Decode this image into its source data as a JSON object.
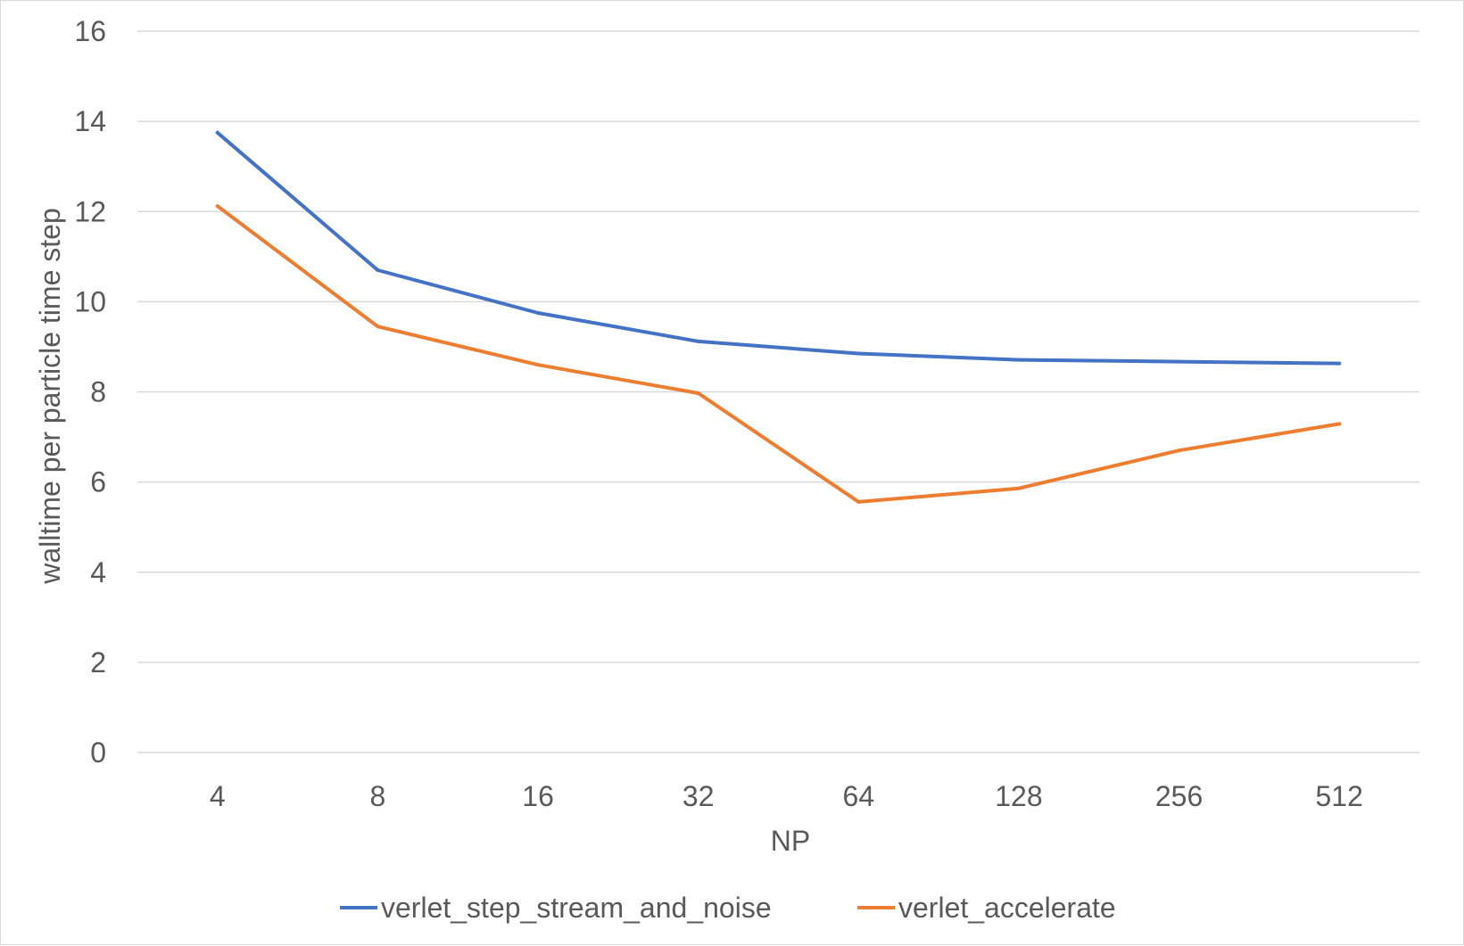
{
  "chart_data": {
    "type": "line",
    "title": "",
    "xlabel": "NP",
    "ylabel": "walltime per particle time step",
    "categories": [
      "4",
      "8",
      "16",
      "32",
      "64",
      "128",
      "256",
      "512"
    ],
    "ylim": [
      0,
      16
    ],
    "yticks": [
      "0",
      "2",
      "4",
      "6",
      "8",
      "10",
      "12",
      "14",
      "16"
    ],
    "grid": "horizontal",
    "legend_position": "bottom",
    "series": [
      {
        "name": "verlet_step_stream_and_noise",
        "color": "#4472C4",
        "values": [
          13.75,
          10.7,
          9.75,
          9.12,
          8.85,
          8.71,
          8.67,
          8.63
        ]
      },
      {
        "name": "verlet_accelerate",
        "color": "#ED7D31",
        "values": [
          12.12,
          9.45,
          8.6,
          7.97,
          5.56,
          5.86,
          6.7,
          7.29
        ]
      }
    ]
  }
}
